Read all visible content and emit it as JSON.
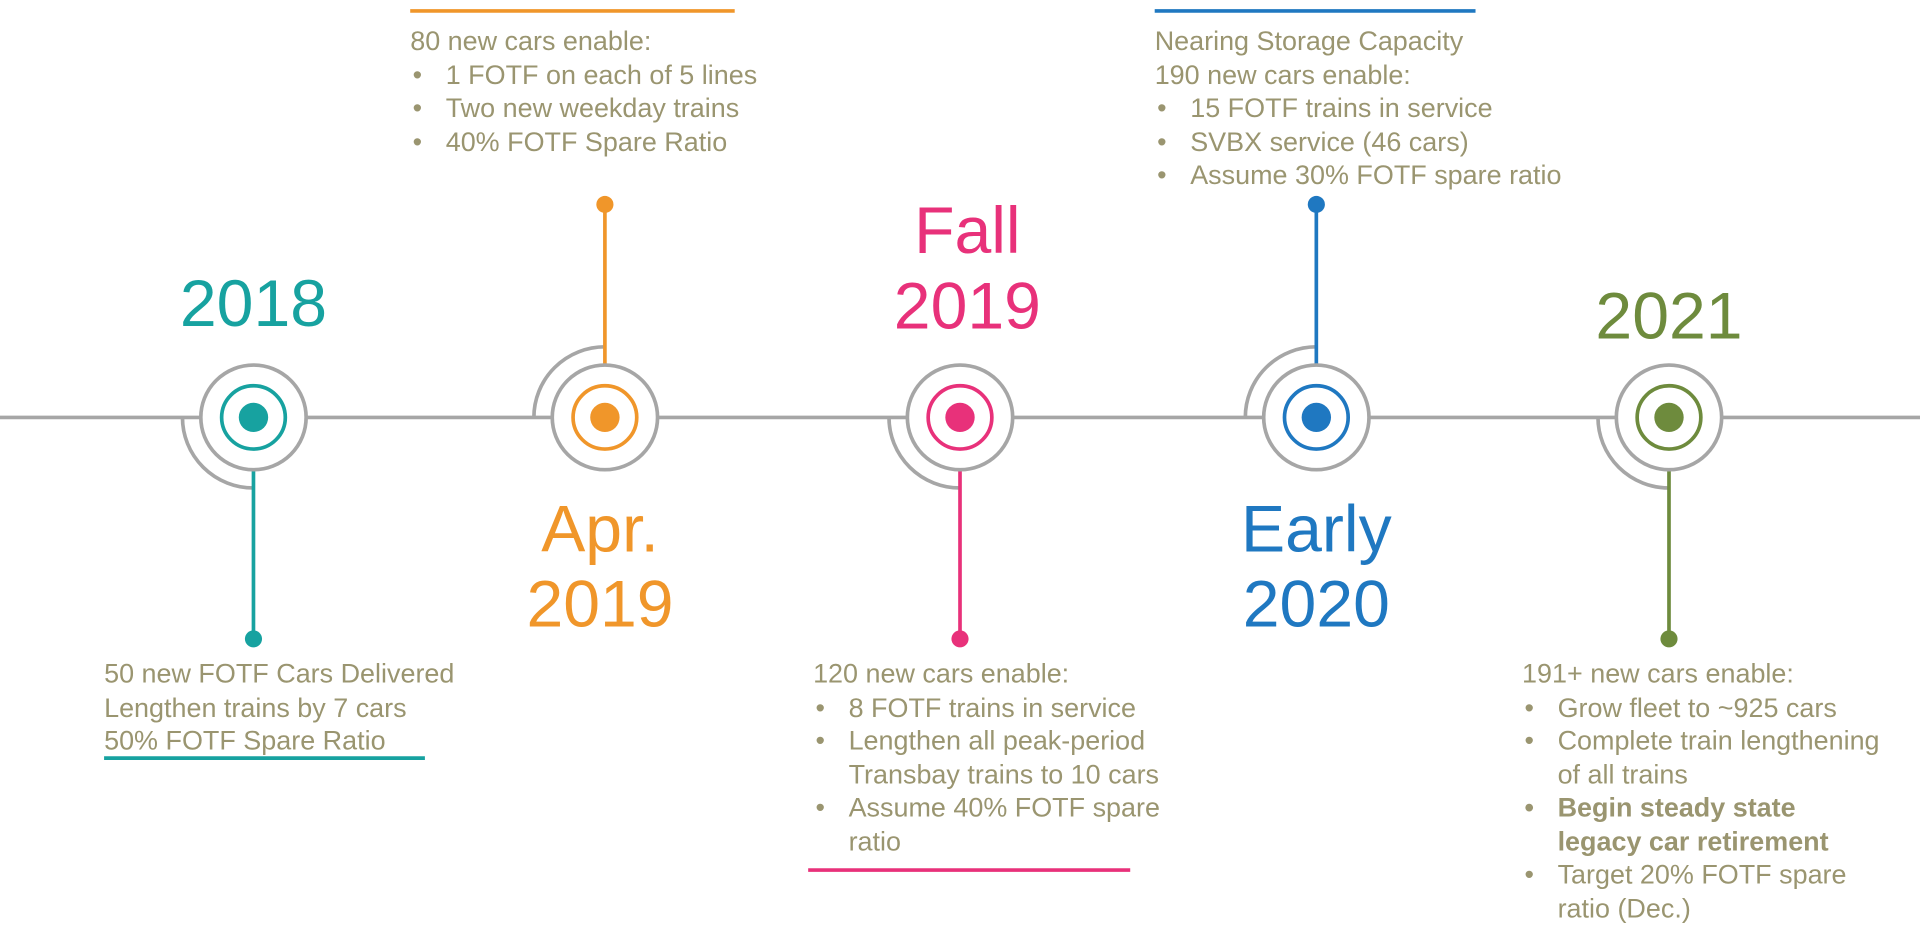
{
  "milestones": [
    {
      "label": [
        "2018"
      ],
      "color": "#17a2a0",
      "notes": {
        "lines": [
          "50 new FOTF Cars Delivered",
          "Lengthen trains by 7 cars",
          "50% FOTF Spare Ratio"
        ],
        "bullets": []
      }
    },
    {
      "label": [
        "Apr.",
        "2019"
      ],
      "color": "#f0962a",
      "notes": {
        "lines": [
          "80 new cars enable:"
        ],
        "bullets": [
          {
            "text": "1 FOTF on each of 5 lines"
          },
          {
            "text": "Two new weekday trains"
          },
          {
            "text": "40% FOTF Spare Ratio"
          }
        ]
      }
    },
    {
      "label": [
        "Fall",
        "2019"
      ],
      "color": "#e8317a",
      "notes": {
        "lines": [
          "120 new cars enable:"
        ],
        "bullets": [
          {
            "text": "8 FOTF trains in service"
          },
          {
            "text": "Lengthen all peak-period Transbay trains to 10 cars"
          },
          {
            "text": "Assume 40% FOTF spare ratio"
          }
        ]
      }
    },
    {
      "label": [
        "Early",
        "2020"
      ],
      "color": "#1f78c1",
      "notes": {
        "lines": [
          "Nearing Storage Capacity",
          "190 new cars enable:"
        ],
        "bullets": [
          {
            "text": "15 FOTF trains in service"
          },
          {
            "text": "SVBX service (46 cars)"
          },
          {
            "text": "Assume 30% FOTF spare ratio"
          }
        ]
      }
    },
    {
      "label": [
        "2021"
      ],
      "color": "#6e8b3d",
      "notes": {
        "lines": [
          "191+ new cars enable:"
        ],
        "bullets": [
          {
            "text": "Grow fleet to ~925 cars"
          },
          {
            "text": "Complete train lengthening of all trains"
          },
          {
            "text": "Begin steady state legacy car retirement",
            "bold": true
          },
          {
            "text": "Target 20% FOTF spare ratio (Dec.)"
          }
        ]
      }
    }
  ]
}
